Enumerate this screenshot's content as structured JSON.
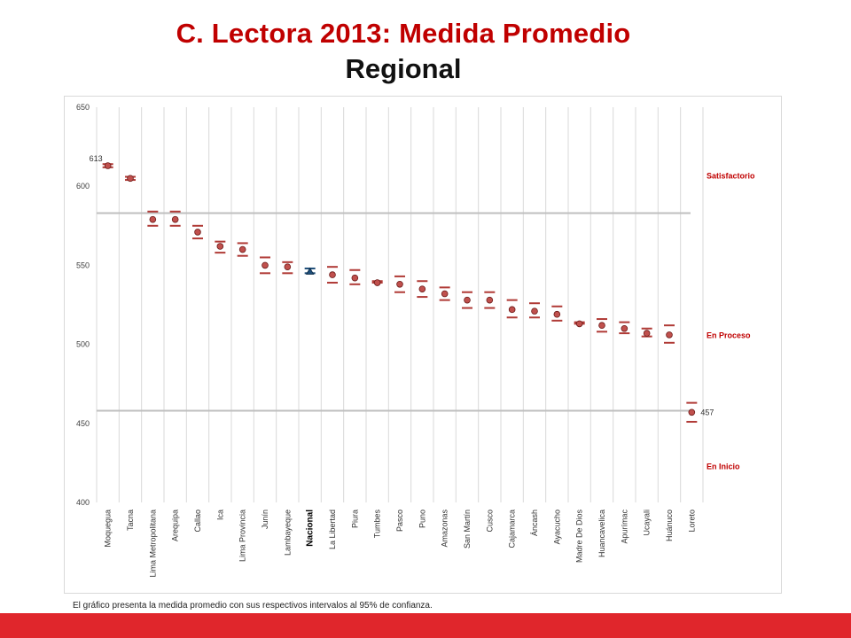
{
  "page": {
    "title": "C. Lectora 2013: Medida Promedio",
    "subtitle": "Regional",
    "footnote": "El gráfico presenta la medida promedio con sus respectivos intervalos al 95% de confianza."
  },
  "colors": {
    "title": "#c00000",
    "marker": "#c0504d",
    "marker_edge": "#6b1a18",
    "error_bar": "#b03a36",
    "national_marker": "#1f4e79",
    "threshold_line": "#bfbfbf",
    "level_label": "#c00000",
    "bottom_bar": "#e0262c"
  },
  "chart_data": {
    "type": "scatter",
    "title": "",
    "xlabel": "",
    "ylabel": "",
    "ylim": [
      400,
      650
    ],
    "yticks": [
      400,
      450,
      500,
      550,
      600,
      650
    ],
    "grid": "vertical",
    "highlight_category": "Nacional",
    "categories": [
      "Moquegua",
      "Tacna",
      "Lima Metropolitana",
      "Arequipa",
      "Callao",
      "Ica",
      "Lima Provincia",
      "Junín",
      "Lambayeque",
      "Nacional",
      "La Libertad",
      "Piura",
      "Tumbes",
      "Pasco",
      "Puno",
      "Amazonas",
      "San Martín",
      "Cusco",
      "Cajamarca",
      "Áncash",
      "Ayacucho",
      "Madre De Dios",
      "Huancavelica",
      "Apurímac",
      "Ucayali",
      "Huánuco",
      "Loreto"
    ],
    "values": [
      613,
      605,
      579,
      579,
      571,
      562,
      560,
      550,
      549,
      546,
      544,
      542,
      539,
      538,
      535,
      532,
      528,
      528,
      522,
      521,
      519,
      513,
      512,
      510,
      507,
      506,
      457
    ],
    "lower": [
      612,
      604,
      575,
      575,
      567,
      558,
      556,
      545,
      545,
      545,
      539,
      538,
      539,
      533,
      530,
      528,
      523,
      523,
      517,
      517,
      515,
      513,
      508,
      507,
      505,
      501,
      451
    ],
    "upper": [
      614,
      606,
      584,
      584,
      575,
      565,
      564,
      555,
      552,
      548,
      549,
      547,
      540,
      543,
      540,
      536,
      533,
      533,
      528,
      526,
      524,
      514,
      516,
      514,
      510,
      512,
      463
    ],
    "thresholds": [
      {
        "name": "Satisfactorio/En Proceso",
        "value": 583
      },
      {
        "name": "En Proceso/En Inicio",
        "value": 458
      }
    ],
    "level_labels": [
      "Satisfactorio",
      "En Proceso",
      "En Inicio"
    ],
    "data_labels": [
      {
        "category": "Moquegua",
        "text": "613"
      },
      {
        "category": "Loreto",
        "text": "457"
      }
    ]
  }
}
